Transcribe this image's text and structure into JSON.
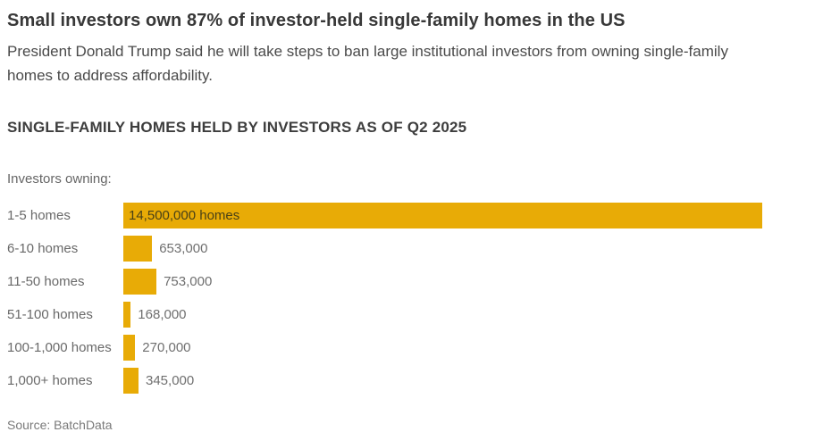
{
  "header": {
    "title": "Small investors own 87% of investor-held single-family homes in the US",
    "subtitle": "President Donald Trump said he will take steps to ban large institutional investors from owning single-family homes to address affordability."
  },
  "chart_data": {
    "type": "bar",
    "orientation": "horizontal",
    "title": "SINGLE-FAMILY HOMES HELD BY INVESTORS AS OF Q2 2025",
    "group_label": "Investors owning:",
    "categories": [
      "1-5 homes",
      "6-10 homes",
      "11-50 homes",
      "51-100 homes",
      "100-1,000 homes",
      "1,000+ homes"
    ],
    "values": [
      14500000,
      653000,
      753000,
      168000,
      270000,
      345000
    ],
    "value_labels": [
      "14,500,000 homes",
      "653,000",
      "753,000",
      "168,000",
      "270,000",
      "345,000"
    ],
    "xlim": [
      0,
      14500000
    ],
    "grid": false,
    "legend": "none",
    "bar_color": "#E8AB06"
  },
  "source": "Source: BatchData",
  "colors": {
    "bar": "#E8AB06",
    "title_text": "#383838",
    "subtitle_text": "#4a4a4a",
    "heading_text": "#3d3d3d",
    "label_text": "#696969",
    "value_text": "#6f6f6f",
    "inside_bar_text": "#494117",
    "source_text": "#7a7a7a",
    "background": "#ffffff"
  }
}
